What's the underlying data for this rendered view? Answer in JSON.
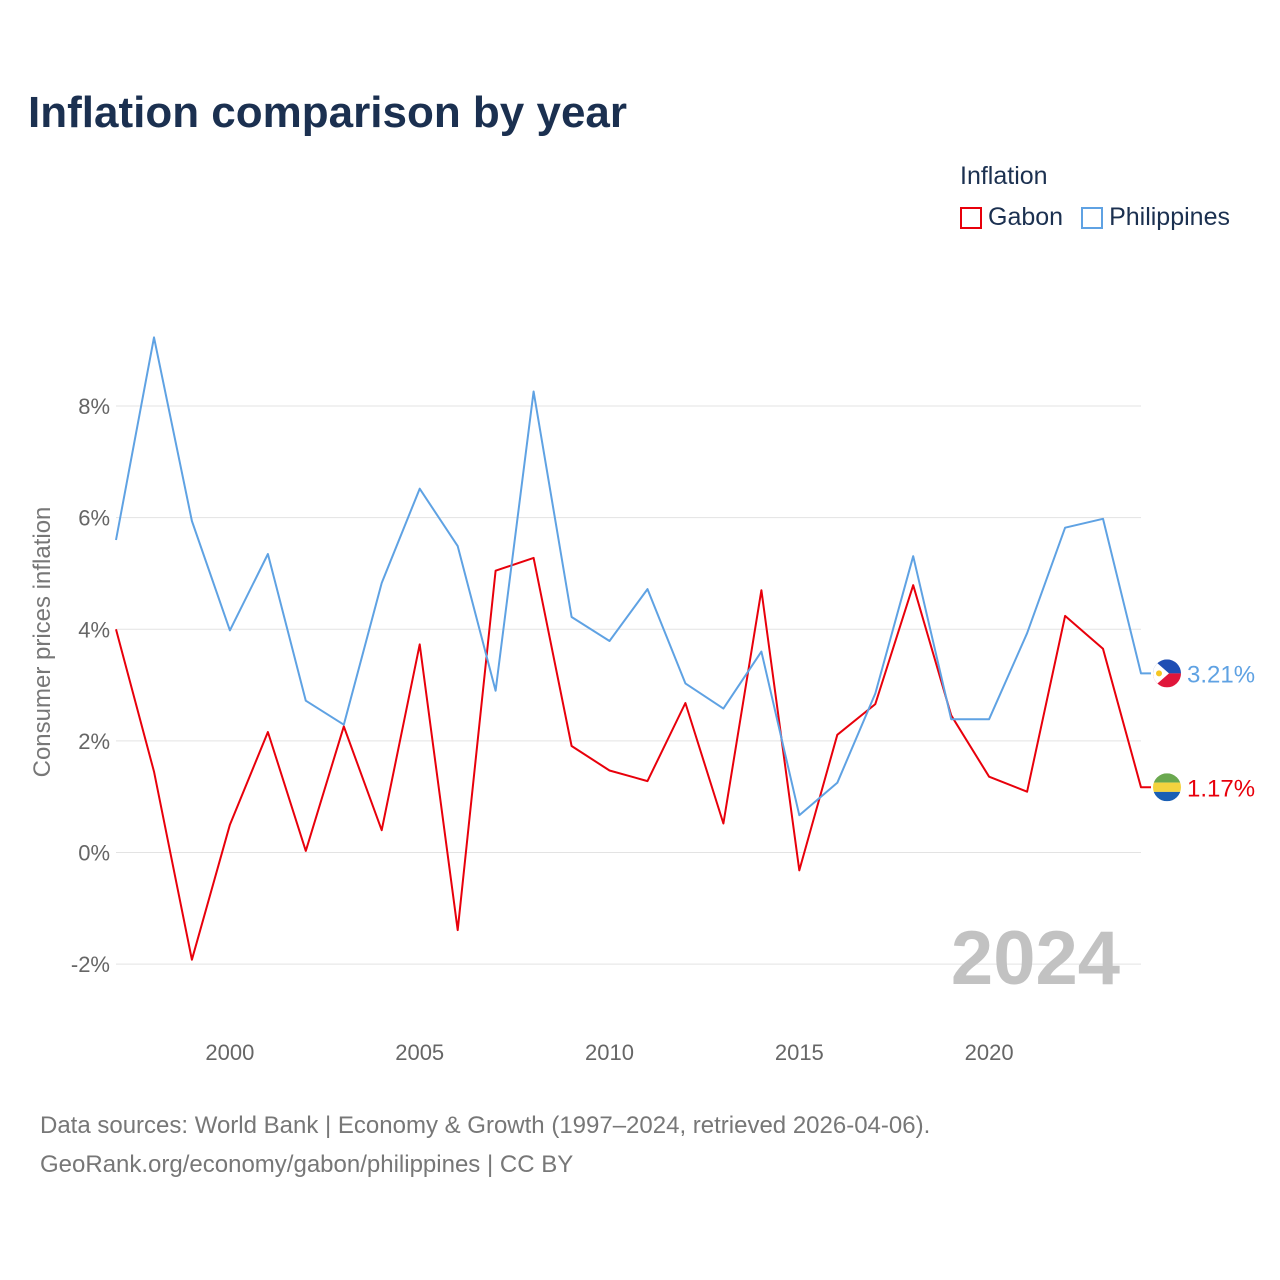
{
  "chart_data": {
    "type": "line",
    "title": "Inflation comparison by year",
    "ylabel": "Consumer prices inflation",
    "xlabel": "",
    "legend_title": "Inflation",
    "legend_placement": "top-right",
    "ylim": [
      -3,
      9.9
    ],
    "xlim": [
      1997,
      2024
    ],
    "y_ticks": [
      -2,
      0,
      2,
      4,
      6,
      8
    ],
    "y_tick_labels": [
      "-2%",
      "0%",
      "2%",
      "4%",
      "6%",
      "8%"
    ],
    "x_ticks": [
      2000,
      2005,
      2010,
      2015,
      2020
    ],
    "x_tick_labels": [
      "2000",
      "2005",
      "2010",
      "2015",
      "2020"
    ],
    "grid": true,
    "current_year": "2024",
    "x": [
      1997,
      1998,
      1999,
      2000,
      2001,
      2002,
      2003,
      2004,
      2005,
      2006,
      2007,
      2008,
      2009,
      2010,
      2011,
      2012,
      2013,
      2014,
      2015,
      2016,
      2017,
      2018,
      2019,
      2020,
      2021,
      2022,
      2023,
      2024
    ],
    "series": [
      {
        "name": "Gabon",
        "color": "#e8000b",
        "end_label": "1.17%",
        "flag": "gabon-flag",
        "values": [
          4.0,
          1.45,
          -1.92,
          0.5,
          2.16,
          0.03,
          2.26,
          0.4,
          3.73,
          -1.39,
          5.05,
          5.28,
          1.91,
          1.47,
          1.28,
          2.68,
          0.52,
          4.7,
          -0.32,
          2.11,
          2.66,
          4.79,
          2.46,
          1.36,
          1.09,
          4.24,
          3.65,
          1.17
        ]
      },
      {
        "name": "Philippines",
        "color": "#5fa2e3",
        "end_label": "3.21%",
        "flag": "philippines-flag",
        "values": [
          5.6,
          9.23,
          5.94,
          3.98,
          5.35,
          2.72,
          2.29,
          4.83,
          6.52,
          5.49,
          2.9,
          8.26,
          4.22,
          3.79,
          4.72,
          3.03,
          2.58,
          3.6,
          0.67,
          1.25,
          2.85,
          5.31,
          2.39,
          2.39,
          3.93,
          5.82,
          5.98,
          3.21
        ]
      }
    ]
  },
  "source": {
    "line1": "Data sources: World Bank | Economy & Growth (1997–2024, retrieved 2026-04-06).",
    "line2": "GeoRank.org/economy/gabon/philippines | CC BY"
  }
}
